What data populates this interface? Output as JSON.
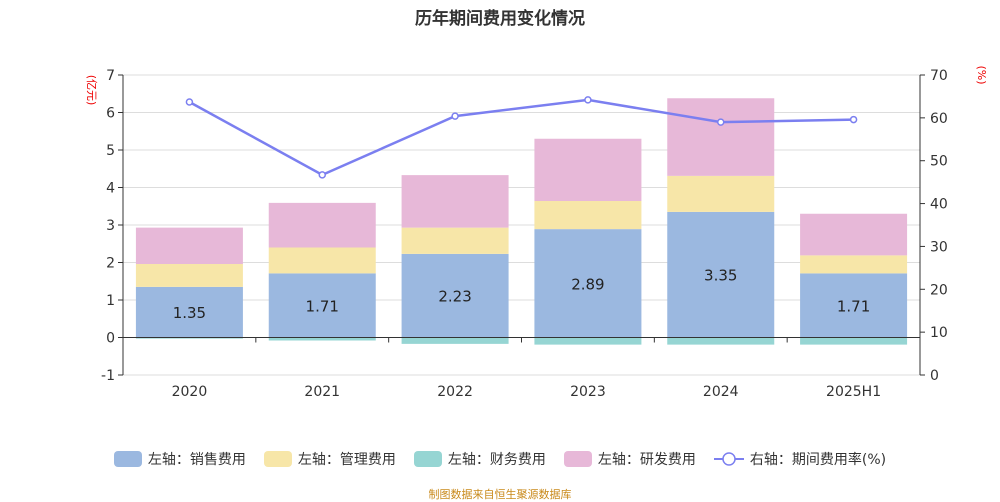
{
  "title": "历年期间费用变化情况",
  "footer": "制图数据来自恒生聚源数据库",
  "chart_data": {
    "type": "bar",
    "stacked": true,
    "categories": [
      "2020",
      "2021",
      "2022",
      "2023",
      "2024",
      "2025H1"
    ],
    "left_axis": {
      "unit": "(亿元)",
      "range": [
        -1,
        7
      ],
      "ticks": [
        "-1",
        "0",
        "1",
        "2",
        "3",
        "4",
        "5",
        "6",
        "7"
      ]
    },
    "right_axis": {
      "unit": "(%)",
      "range": [
        0,
        70
      ],
      "ticks": [
        "0",
        "10",
        "20",
        "30",
        "40",
        "50",
        "60",
        "70"
      ]
    },
    "grid": true,
    "legend_position": "bottom",
    "series": [
      {
        "name": "左轴：销售费用",
        "type": "bar",
        "color": "#9bb8e0",
        "values": [
          1.35,
          1.71,
          2.23,
          2.89,
          3.35,
          1.71
        ],
        "labels": [
          "1.35",
          "1.71",
          "2.23",
          "2.89",
          "3.35",
          "1.71"
        ]
      },
      {
        "name": "左轴：管理费用",
        "type": "bar",
        "color": "#f7e6a8",
        "values": [
          0.61,
          0.69,
          0.7,
          0.75,
          0.96,
          0.48
        ]
      },
      {
        "name": "左轴：财务费用",
        "type": "bar",
        "color": "#96d5d3",
        "values": [
          -0.03,
          -0.08,
          -0.17,
          -0.19,
          -0.19,
          -0.19
        ]
      },
      {
        "name": "左轴：研发费用",
        "type": "bar",
        "color": "#e7b8d8",
        "values": [
          0.97,
          1.19,
          1.4,
          1.66,
          2.07,
          1.11
        ]
      },
      {
        "name": "右轴：期间费用率(%)",
        "type": "line",
        "color": "#7b7ff0",
        "values": [
          63.7,
          46.7,
          60.4,
          64.2,
          59.0,
          59.6
        ]
      }
    ]
  }
}
